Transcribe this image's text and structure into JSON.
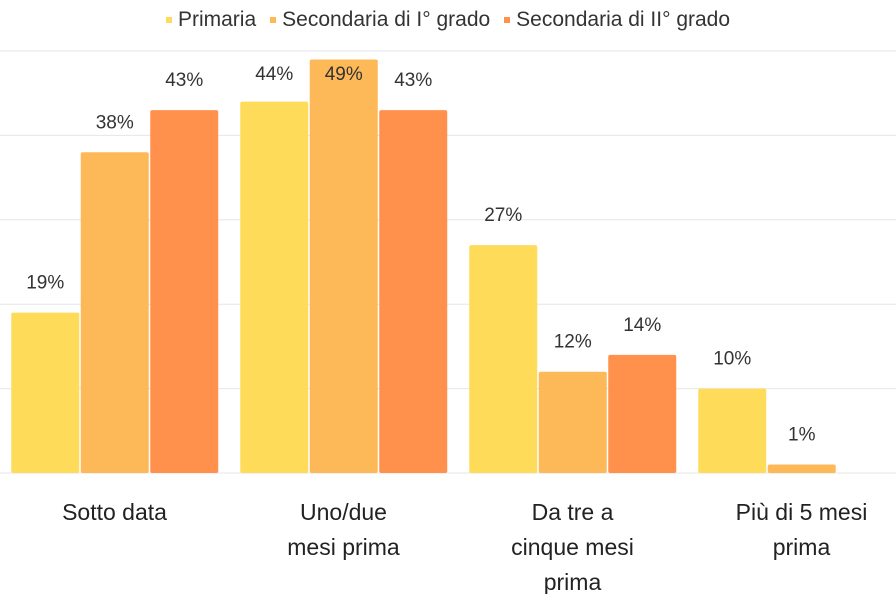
{
  "chart_data": {
    "type": "bar",
    "categories": [
      "Sotto data",
      "Uno/due mesi prima",
      "Da tre a cinque mesi prima",
      "Più di 5 mesi prima"
    ],
    "series": [
      {
        "name": "Primaria",
        "color": "#fedc5a",
        "values": [
          19,
          44,
          27,
          10
        ],
        "value_labels": [
          "19%",
          "44%",
          "27%",
          "10%"
        ]
      },
      {
        "name": "Secondaria di I° grado",
        "color": "#fdb857",
        "values": [
          38,
          49,
          12,
          1
        ],
        "value_labels": [
          "38%",
          "49%",
          "12%",
          "1%"
        ]
      },
      {
        "name": "Secondaria di II° grado",
        "color": "#ff914d",
        "values": [
          43,
          43,
          14,
          null
        ],
        "value_labels": [
          "43%",
          "43%",
          "14%",
          null
        ]
      }
    ],
    "ylim": [
      0,
      50
    ],
    "yticks": [
      0,
      10,
      20,
      30,
      40,
      50
    ],
    "grid": true,
    "legend": "top"
  }
}
